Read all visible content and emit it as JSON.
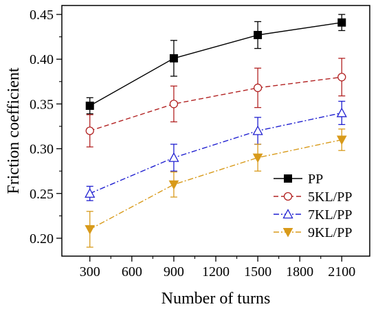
{
  "chart_data": {
    "type": "line",
    "xlabel": "Number of turns",
    "ylabel": "Friction coefficient",
    "xlim": [
      100,
      2300
    ],
    "ylim": [
      0.18,
      0.46
    ],
    "x_ticks": [
      300,
      600,
      900,
      1200,
      1500,
      1800,
      2100
    ],
    "y_ticks": [
      0.2,
      0.25,
      0.3,
      0.35,
      0.4,
      0.45
    ],
    "legend_position": "bottom-right",
    "x": [
      300,
      900,
      1500,
      2100
    ],
    "series": [
      {
        "name": "PP",
        "values": [
          0.348,
          0.401,
          0.427,
          0.441
        ],
        "errors": [
          0.009,
          0.02,
          0.015,
          0.009
        ],
        "color": "#000000",
        "marker": "filled-square",
        "line": "solid"
      },
      {
        "name": "5KL/PP",
        "values": [
          0.32,
          0.35,
          0.368,
          0.38
        ],
        "errors": [
          0.018,
          0.02,
          0.022,
          0.021
        ],
        "color": "#b22222",
        "marker": "open-circle",
        "line": "dashed"
      },
      {
        "name": "7KL/PP",
        "values": [
          0.25,
          0.29,
          0.32,
          0.34
        ],
        "errors": [
          0.008,
          0.015,
          0.015,
          0.013
        ],
        "color": "#1f1fd0",
        "marker": "open-triangle-up",
        "line": "dash-dot"
      },
      {
        "name": "9KL/PP",
        "values": [
          0.21,
          0.26,
          0.29,
          0.31
        ],
        "errors": [
          0.02,
          0.014,
          0.015,
          0.012
        ],
        "color": "#d89a1a",
        "marker": "filled-triangle-down",
        "line": "dash-dot"
      }
    ]
  }
}
